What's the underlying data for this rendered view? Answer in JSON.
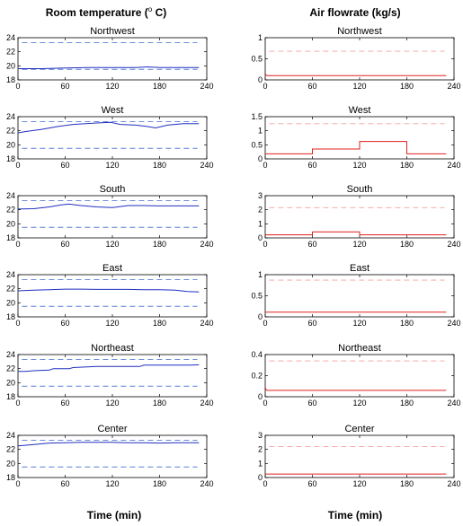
{
  "columns": {
    "left_title": "Room temperature (",
    "left_title_deg": "o",
    "left_title_unit": " C)",
    "right_title": "Air flowrate (kg/s)"
  },
  "xlabel_left": "Time  (min)",
  "xlabel_right": "Time  (min)",
  "colors": {
    "temperature": "#1f2fbf",
    "temperature_limit": "#5a7fd6",
    "flow": "#e02020",
    "flow_limit": "#f4a0a0"
  },
  "chart_data": [
    {
      "type": "line",
      "title": "Northwest",
      "column": "left",
      "row": 0,
      "xlim": [
        0,
        240
      ],
      "xticks": [
        0,
        60,
        120,
        180,
        240
      ],
      "ylim": [
        18,
        24
      ],
      "yticks": [
        18,
        20,
        22,
        24
      ],
      "limits": [
        19.5,
        23.3
      ],
      "x": [
        0,
        30,
        60,
        90,
        120,
        150,
        165,
        180,
        200,
        230
      ],
      "values": [
        19.6,
        19.6,
        19.7,
        19.75,
        19.75,
        19.75,
        19.85,
        19.75,
        19.75,
        19.75
      ]
    },
    {
      "type": "line",
      "title": "West",
      "column": "left",
      "row": 1,
      "xlim": [
        0,
        240
      ],
      "xticks": [
        0,
        60,
        120,
        180,
        240
      ],
      "ylim": [
        18,
        24
      ],
      "yticks": [
        18,
        20,
        22,
        24
      ],
      "limits": [
        19.5,
        23.3
      ],
      "x": [
        0,
        10,
        30,
        50,
        70,
        100,
        118,
        130,
        150,
        165,
        175,
        190,
        210,
        230
      ],
      "values": [
        21.7,
        21.9,
        22.2,
        22.6,
        22.9,
        23.1,
        23.2,
        22.9,
        22.8,
        22.6,
        22.4,
        22.8,
        23.0,
        23.0
      ]
    },
    {
      "type": "line",
      "title": "South",
      "column": "left",
      "row": 2,
      "xlim": [
        0,
        240
      ],
      "xticks": [
        0,
        60,
        120,
        180,
        240
      ],
      "ylim": [
        18,
        24
      ],
      "yticks": [
        18,
        20,
        22,
        24
      ],
      "limits": [
        19.5,
        23.3
      ],
      "x": [
        0,
        20,
        40,
        55,
        65,
        80,
        100,
        120,
        140,
        160,
        180,
        200,
        230
      ],
      "values": [
        22.1,
        22.15,
        22.4,
        22.7,
        22.8,
        22.6,
        22.4,
        22.3,
        22.6,
        22.6,
        22.55,
        22.55,
        22.55
      ]
    },
    {
      "type": "line",
      "title": "East",
      "column": "left",
      "row": 3,
      "xlim": [
        0,
        240
      ],
      "xticks": [
        0,
        60,
        120,
        180,
        240
      ],
      "ylim": [
        18,
        24
      ],
      "yticks": [
        18,
        20,
        22,
        24
      ],
      "limits": [
        19.5,
        23.3
      ],
      "x": [
        0,
        20,
        40,
        60,
        80,
        100,
        120,
        140,
        160,
        180,
        200,
        215,
        230
      ],
      "values": [
        21.7,
        21.8,
        21.85,
        21.95,
        21.95,
        21.9,
        21.9,
        21.9,
        21.85,
        21.85,
        21.8,
        21.6,
        21.55
      ]
    },
    {
      "type": "line",
      "title": "Northeast",
      "column": "left",
      "row": 4,
      "xlim": [
        0,
        240
      ],
      "xticks": [
        0,
        60,
        120,
        180,
        240
      ],
      "ylim": [
        18,
        24
      ],
      "yticks": [
        18,
        20,
        22,
        24
      ],
      "limits": [
        19.5,
        23.3
      ],
      "x": [
        0,
        10,
        20,
        40,
        45,
        65,
        70,
        100,
        120,
        155,
        160,
        200,
        220,
        230
      ],
      "values": [
        21.6,
        21.6,
        21.7,
        21.8,
        22.0,
        22.0,
        22.15,
        22.3,
        22.3,
        22.3,
        22.5,
        22.5,
        22.5,
        22.55
      ]
    },
    {
      "type": "line",
      "title": "Center",
      "column": "left",
      "row": 5,
      "xlim": [
        0,
        240
      ],
      "xticks": [
        0,
        60,
        120,
        180,
        240
      ],
      "ylim": [
        18,
        24
      ],
      "yticks": [
        18,
        20,
        22,
        24
      ],
      "limits": [
        19.5,
        23.3
      ],
      "x": [
        0,
        20,
        40,
        60,
        80,
        100,
        120,
        140,
        160,
        180,
        200,
        230
      ],
      "values": [
        22.5,
        22.7,
        22.9,
        22.95,
        23.0,
        23.0,
        23.0,
        22.95,
        22.95,
        22.9,
        22.95,
        22.95
      ]
    },
    {
      "type": "line",
      "title": "Northwest",
      "column": "right",
      "row": 0,
      "xlim": [
        0,
        240
      ],
      "xticks": [
        0,
        60,
        120,
        180,
        240
      ],
      "ylim": [
        0,
        1
      ],
      "yticks": [
        0,
        0.5,
        1
      ],
      "ytick_labels": [
        "0",
        "0.5",
        "1"
      ],
      "limits": [
        0.68
      ],
      "x": [
        0,
        2,
        60,
        120,
        180,
        230
      ],
      "values": [
        0.14,
        0.1,
        0.1,
        0.1,
        0.1,
        0.1
      ]
    },
    {
      "type": "line",
      "title": "West",
      "column": "right",
      "row": 1,
      "xlim": [
        0,
        240
      ],
      "xticks": [
        0,
        60,
        120,
        180,
        240
      ],
      "ylim": [
        0,
        1.5
      ],
      "yticks": [
        0,
        0.5,
        1,
        1.5
      ],
      "ytick_labels": [
        "0",
        "0.5",
        "1",
        "1.5"
      ],
      "limits": [
        1.25
      ],
      "x": [
        0,
        60,
        60,
        120,
        120,
        180,
        180,
        230
      ],
      "values": [
        0.18,
        0.18,
        0.35,
        0.35,
        0.62,
        0.62,
        0.18,
        0.18
      ]
    },
    {
      "type": "line",
      "title": "South",
      "column": "right",
      "row": 2,
      "xlim": [
        0,
        240
      ],
      "xticks": [
        0,
        60,
        120,
        180,
        240
      ],
      "ylim": [
        0,
        3
      ],
      "yticks": [
        0,
        1,
        2,
        3
      ],
      "ytick_labels": [
        "0",
        "1",
        "2",
        "3"
      ],
      "limits": [
        2.15
      ],
      "x": [
        0,
        60,
        60,
        120,
        120,
        230
      ],
      "values": [
        0.22,
        0.22,
        0.42,
        0.42,
        0.22,
        0.22
      ]
    },
    {
      "type": "line",
      "title": "East",
      "column": "right",
      "row": 3,
      "xlim": [
        0,
        240
      ],
      "xticks": [
        0,
        60,
        120,
        180,
        240
      ],
      "ylim": [
        0,
        1
      ],
      "yticks": [
        0,
        0.5,
        1
      ],
      "ytick_labels": [
        "0",
        "0.5",
        "1"
      ],
      "limits": [
        0.87
      ],
      "x": [
        0,
        60,
        120,
        180,
        230
      ],
      "values": [
        0.11,
        0.11,
        0.11,
        0.11,
        0.11
      ]
    },
    {
      "type": "line",
      "title": "Northeast",
      "column": "right",
      "row": 4,
      "xlim": [
        0,
        240
      ],
      "xticks": [
        0,
        60,
        120,
        180,
        240
      ],
      "ylim": [
        0,
        0.4
      ],
      "yticks": [
        0,
        0.2,
        0.4
      ],
      "ytick_labels": [
        "0",
        "0.2",
        "0.4"
      ],
      "limits": [
        0.34
      ],
      "x": [
        0,
        1,
        2,
        60,
        120,
        180,
        230
      ],
      "values": [
        0.09,
        0.07,
        0.06,
        0.06,
        0.06,
        0.06,
        0.06
      ]
    },
    {
      "type": "line",
      "title": "Center",
      "column": "right",
      "row": 5,
      "xlim": [
        0,
        240
      ],
      "xticks": [
        0,
        60,
        120,
        180,
        240
      ],
      "ylim": [
        0,
        3
      ],
      "yticks": [
        0,
        1,
        2,
        3
      ],
      "ytick_labels": [
        "0",
        "1",
        "2",
        "3"
      ],
      "limits": [
        2.2
      ],
      "x": [
        0,
        60,
        120,
        180,
        230
      ],
      "values": [
        0.25,
        0.25,
        0.25,
        0.25,
        0.25
      ]
    }
  ]
}
